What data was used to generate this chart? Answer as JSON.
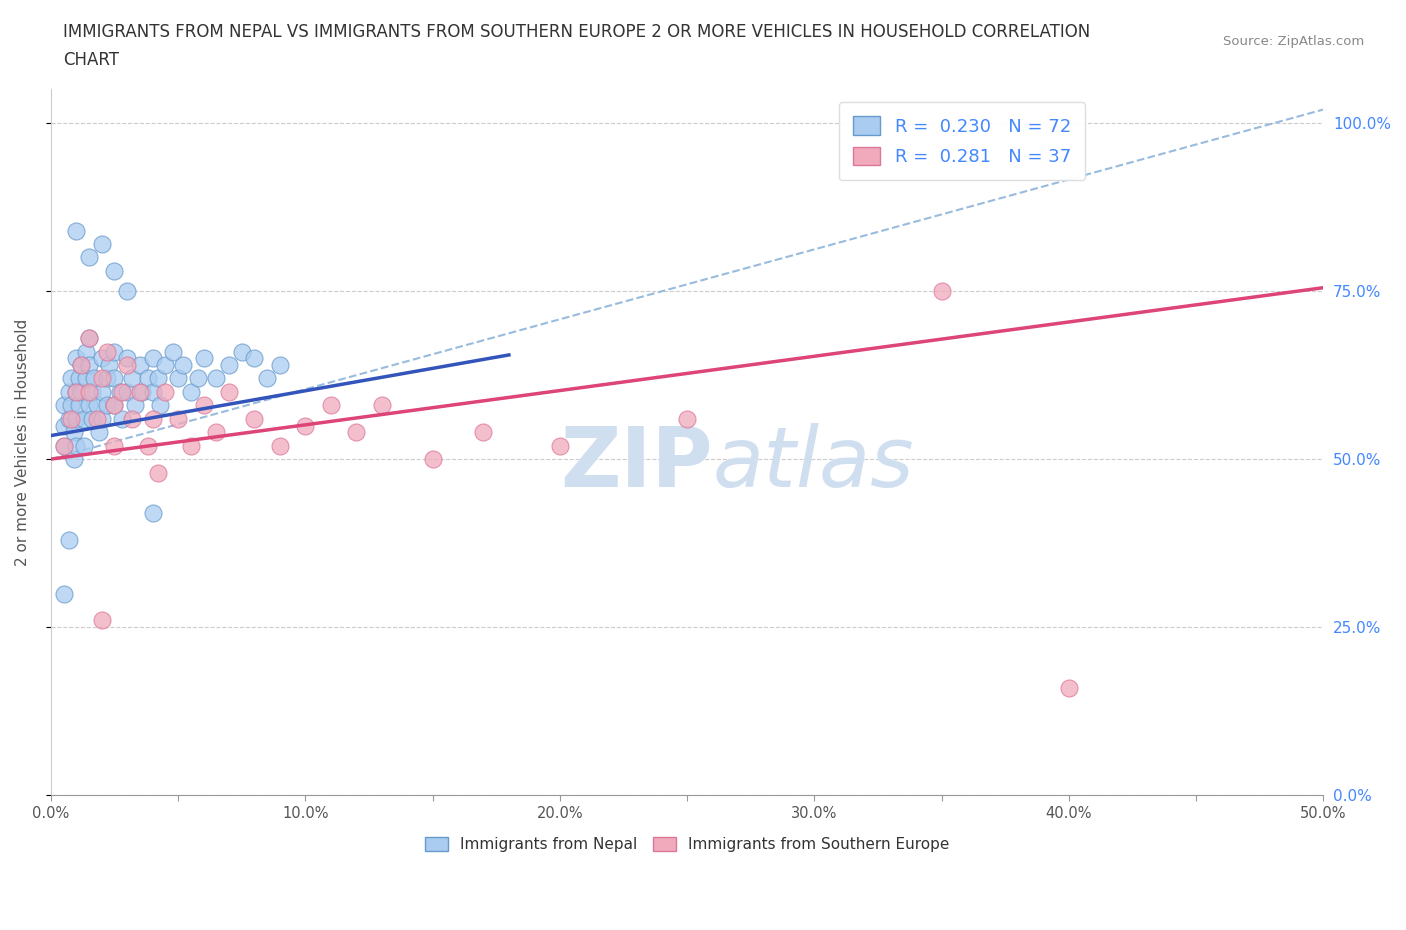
{
  "title_line1": "IMMIGRANTS FROM NEPAL VS IMMIGRANTS FROM SOUTHERN EUROPE 2 OR MORE VEHICLES IN HOUSEHOLD CORRELATION",
  "title_line2": "CHART",
  "source_text": "Source: ZipAtlas.com",
  "ylabel": "2 or more Vehicles in Household",
  "xlim": [
    0.0,
    0.5
  ],
  "ylim": [
    0.0,
    1.05
  ],
  "ytick_labels": [
    "0.0%",
    "25.0%",
    "50.0%",
    "75.0%",
    "100.0%"
  ],
  "ytick_values": [
    0.0,
    0.25,
    0.5,
    0.75,
    1.0
  ],
  "xtick_labels": [
    "0.0%",
    "",
    "10.0%",
    "",
    "20.0%",
    "",
    "30.0%",
    "",
    "40.0%",
    "",
    "50.0%"
  ],
  "xtick_values": [
    0.0,
    0.05,
    0.1,
    0.15,
    0.2,
    0.25,
    0.3,
    0.35,
    0.4,
    0.45,
    0.5
  ],
  "nepal_color": "#aaccf0",
  "nepal_edge_color": "#6699cc",
  "southern_europe_color": "#f0aabb",
  "southern_europe_edge_color": "#dd7799",
  "nepal_R": 0.23,
  "nepal_N": 72,
  "southern_europe_R": 0.281,
  "southern_europe_N": 37,
  "nepal_line_color": "#3355bb",
  "southern_europe_line_color": "#dd4477",
  "dashed_line_color": "#99bbdd",
  "watermark_color": "#d0dff0",
  "legend_nepal_label": "Immigrants from Nepal",
  "legend_south_label": "Immigrants from Southern Europe",
  "nepal_scatter_x": [
    0.005,
    0.005,
    0.005,
    0.007,
    0.007,
    0.008,
    0.008,
    0.009,
    0.009,
    0.01,
    0.01,
    0.01,
    0.01,
    0.011,
    0.011,
    0.012,
    0.012,
    0.013,
    0.013,
    0.014,
    0.014,
    0.015,
    0.015,
    0.015,
    0.016,
    0.016,
    0.017,
    0.018,
    0.019,
    0.02,
    0.02,
    0.02,
    0.022,
    0.022,
    0.023,
    0.025,
    0.025,
    0.025,
    0.027,
    0.028,
    0.03,
    0.03,
    0.032,
    0.033,
    0.035,
    0.036,
    0.038,
    0.04,
    0.04,
    0.042,
    0.043,
    0.045,
    0.048,
    0.05,
    0.052,
    0.055,
    0.058,
    0.06,
    0.065,
    0.07,
    0.075,
    0.08,
    0.085,
    0.09,
    0.01,
    0.015,
    0.02,
    0.025,
    0.03,
    0.005,
    0.007,
    0.04
  ],
  "nepal_scatter_y": [
    0.58,
    0.55,
    0.52,
    0.6,
    0.56,
    0.62,
    0.58,
    0.54,
    0.5,
    0.65,
    0.6,
    0.56,
    0.52,
    0.62,
    0.58,
    0.64,
    0.6,
    0.56,
    0.52,
    0.66,
    0.62,
    0.68,
    0.64,
    0.58,
    0.6,
    0.56,
    0.62,
    0.58,
    0.54,
    0.65,
    0.6,
    0.56,
    0.62,
    0.58,
    0.64,
    0.66,
    0.62,
    0.58,
    0.6,
    0.56,
    0.65,
    0.6,
    0.62,
    0.58,
    0.64,
    0.6,
    0.62,
    0.65,
    0.6,
    0.62,
    0.58,
    0.64,
    0.66,
    0.62,
    0.64,
    0.6,
    0.62,
    0.65,
    0.62,
    0.64,
    0.66,
    0.65,
    0.62,
    0.64,
    0.84,
    0.8,
    0.82,
    0.78,
    0.75,
    0.3,
    0.38,
    0.42
  ],
  "south_europe_scatter_x": [
    0.005,
    0.008,
    0.01,
    0.012,
    0.015,
    0.015,
    0.018,
    0.02,
    0.022,
    0.025,
    0.025,
    0.028,
    0.03,
    0.032,
    0.035,
    0.038,
    0.04,
    0.042,
    0.045,
    0.05,
    0.055,
    0.06,
    0.065,
    0.07,
    0.08,
    0.09,
    0.1,
    0.11,
    0.12,
    0.13,
    0.15,
    0.17,
    0.2,
    0.25,
    0.35,
    0.02,
    0.4
  ],
  "south_europe_scatter_y": [
    0.52,
    0.56,
    0.6,
    0.64,
    0.68,
    0.6,
    0.56,
    0.62,
    0.66,
    0.58,
    0.52,
    0.6,
    0.64,
    0.56,
    0.6,
    0.52,
    0.56,
    0.48,
    0.6,
    0.56,
    0.52,
    0.58,
    0.54,
    0.6,
    0.56,
    0.52,
    0.55,
    0.58,
    0.54,
    0.58,
    0.5,
    0.54,
    0.52,
    0.56,
    0.75,
    0.26,
    0.16
  ],
  "nepal_line_x": [
    0.0,
    0.18
  ],
  "nepal_line_y": [
    0.535,
    0.655
  ],
  "se_line_x": [
    0.0,
    0.5
  ],
  "se_line_y": [
    0.5,
    0.755
  ],
  "dash_line_x": [
    0.0,
    0.5
  ],
  "dash_line_y": [
    0.5,
    1.02
  ]
}
